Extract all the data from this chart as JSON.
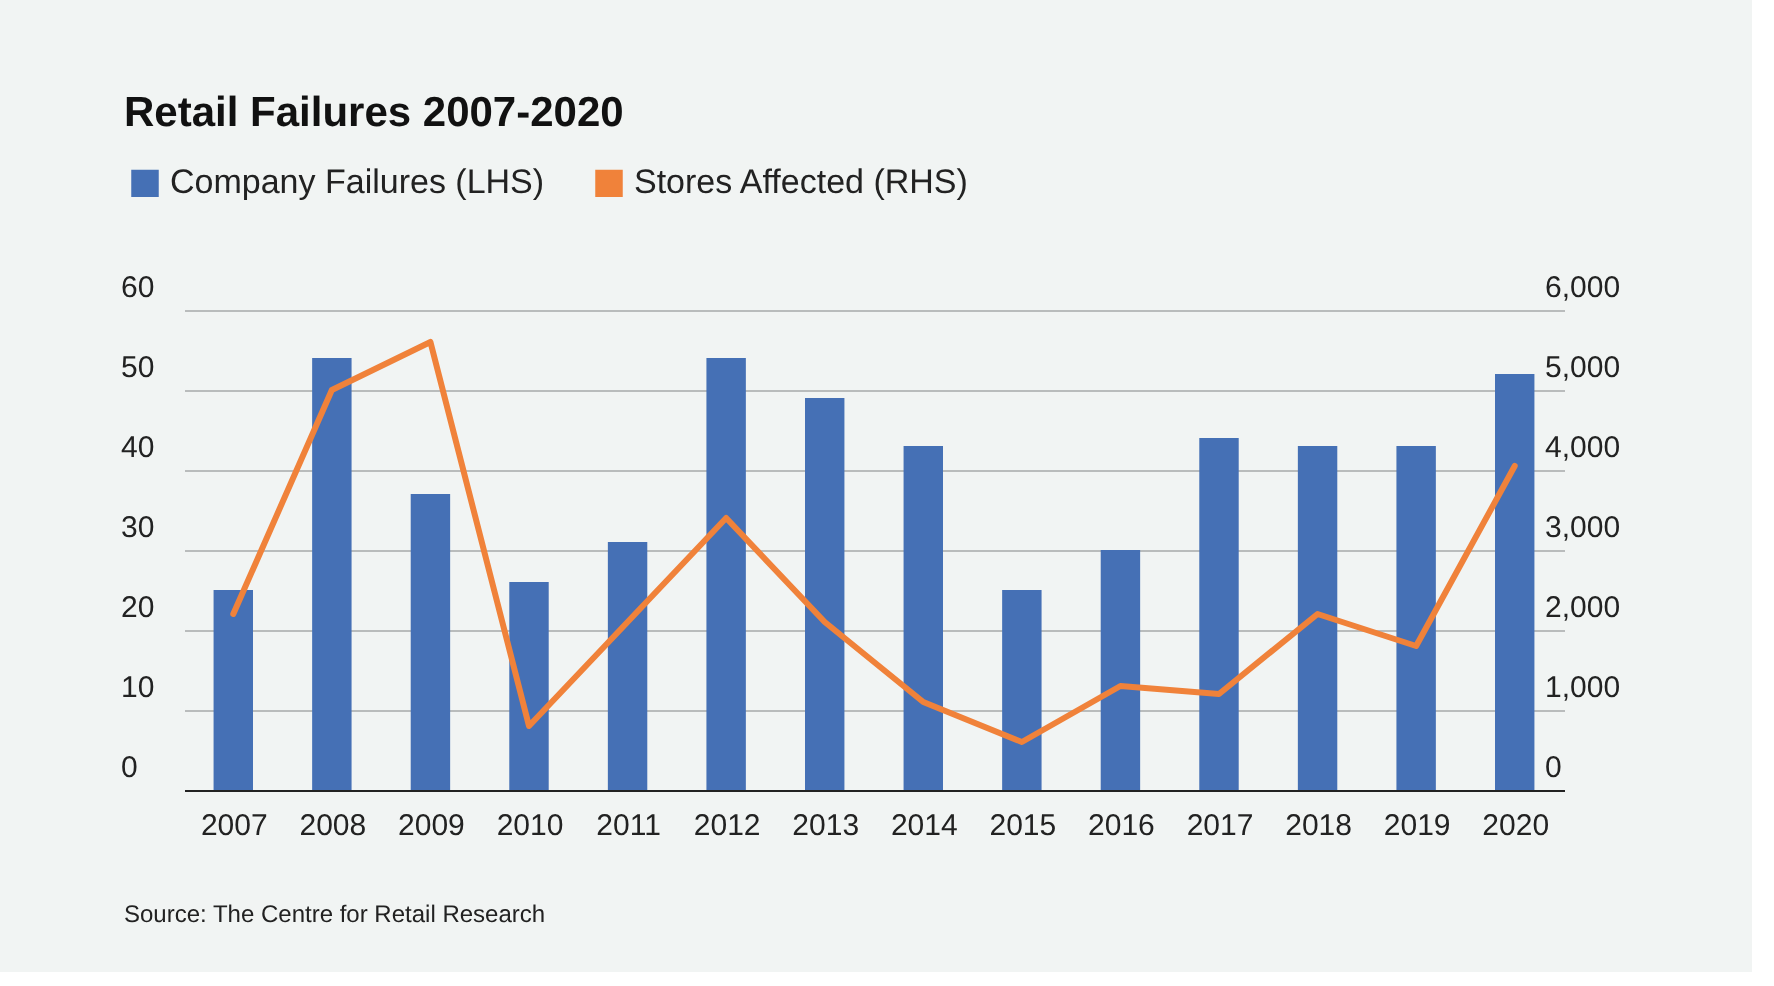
{
  "chart_data": {
    "type": "bar",
    "title": "Retail Failures 2007-2020",
    "categories": [
      "2007",
      "2008",
      "2009",
      "2010",
      "2011",
      "2012",
      "2013",
      "2014",
      "2015",
      "2016",
      "2017",
      "2018",
      "2019",
      "2020"
    ],
    "series": [
      {
        "name": "Company Failures (LHS)",
        "color": "#4570b5",
        "values": [
          25,
          54,
          37,
          26,
          31,
          54,
          49,
          43,
          25,
          30,
          44,
          43,
          43,
          52
        ]
      },
      {
        "name": "Stores Affected (RHS)",
        "type": "line",
        "axis": "y2",
        "color": "#f0823a",
        "values": [
          2200,
          5000,
          5600,
          800,
          2100,
          3400,
          2100,
          1100,
          600,
          1300,
          1200,
          2200,
          1800,
          4050
        ]
      }
    ],
    "ylim": [
      0,
      60
    ],
    "yticks": [
      0,
      10,
      20,
      30,
      40,
      50,
      60
    ],
    "y2lim": [
      0,
      6000
    ],
    "y2ticks": [
      0,
      {
        "value": 1000,
        "label": "1,000"
      },
      {
        "value": 2000,
        "label": "2,000"
      },
      {
        "value": 3000,
        "label": "3,000"
      },
      {
        "value": 4000,
        "label": "4,000"
      },
      {
        "value": 5000,
        "label": "5,000"
      },
      {
        "value": 6000,
        "label": "6,000"
      }
    ],
    "grid": "y",
    "legend": "top left",
    "annotations": [
      "Source: The Centre for Retail Research"
    ]
  }
}
